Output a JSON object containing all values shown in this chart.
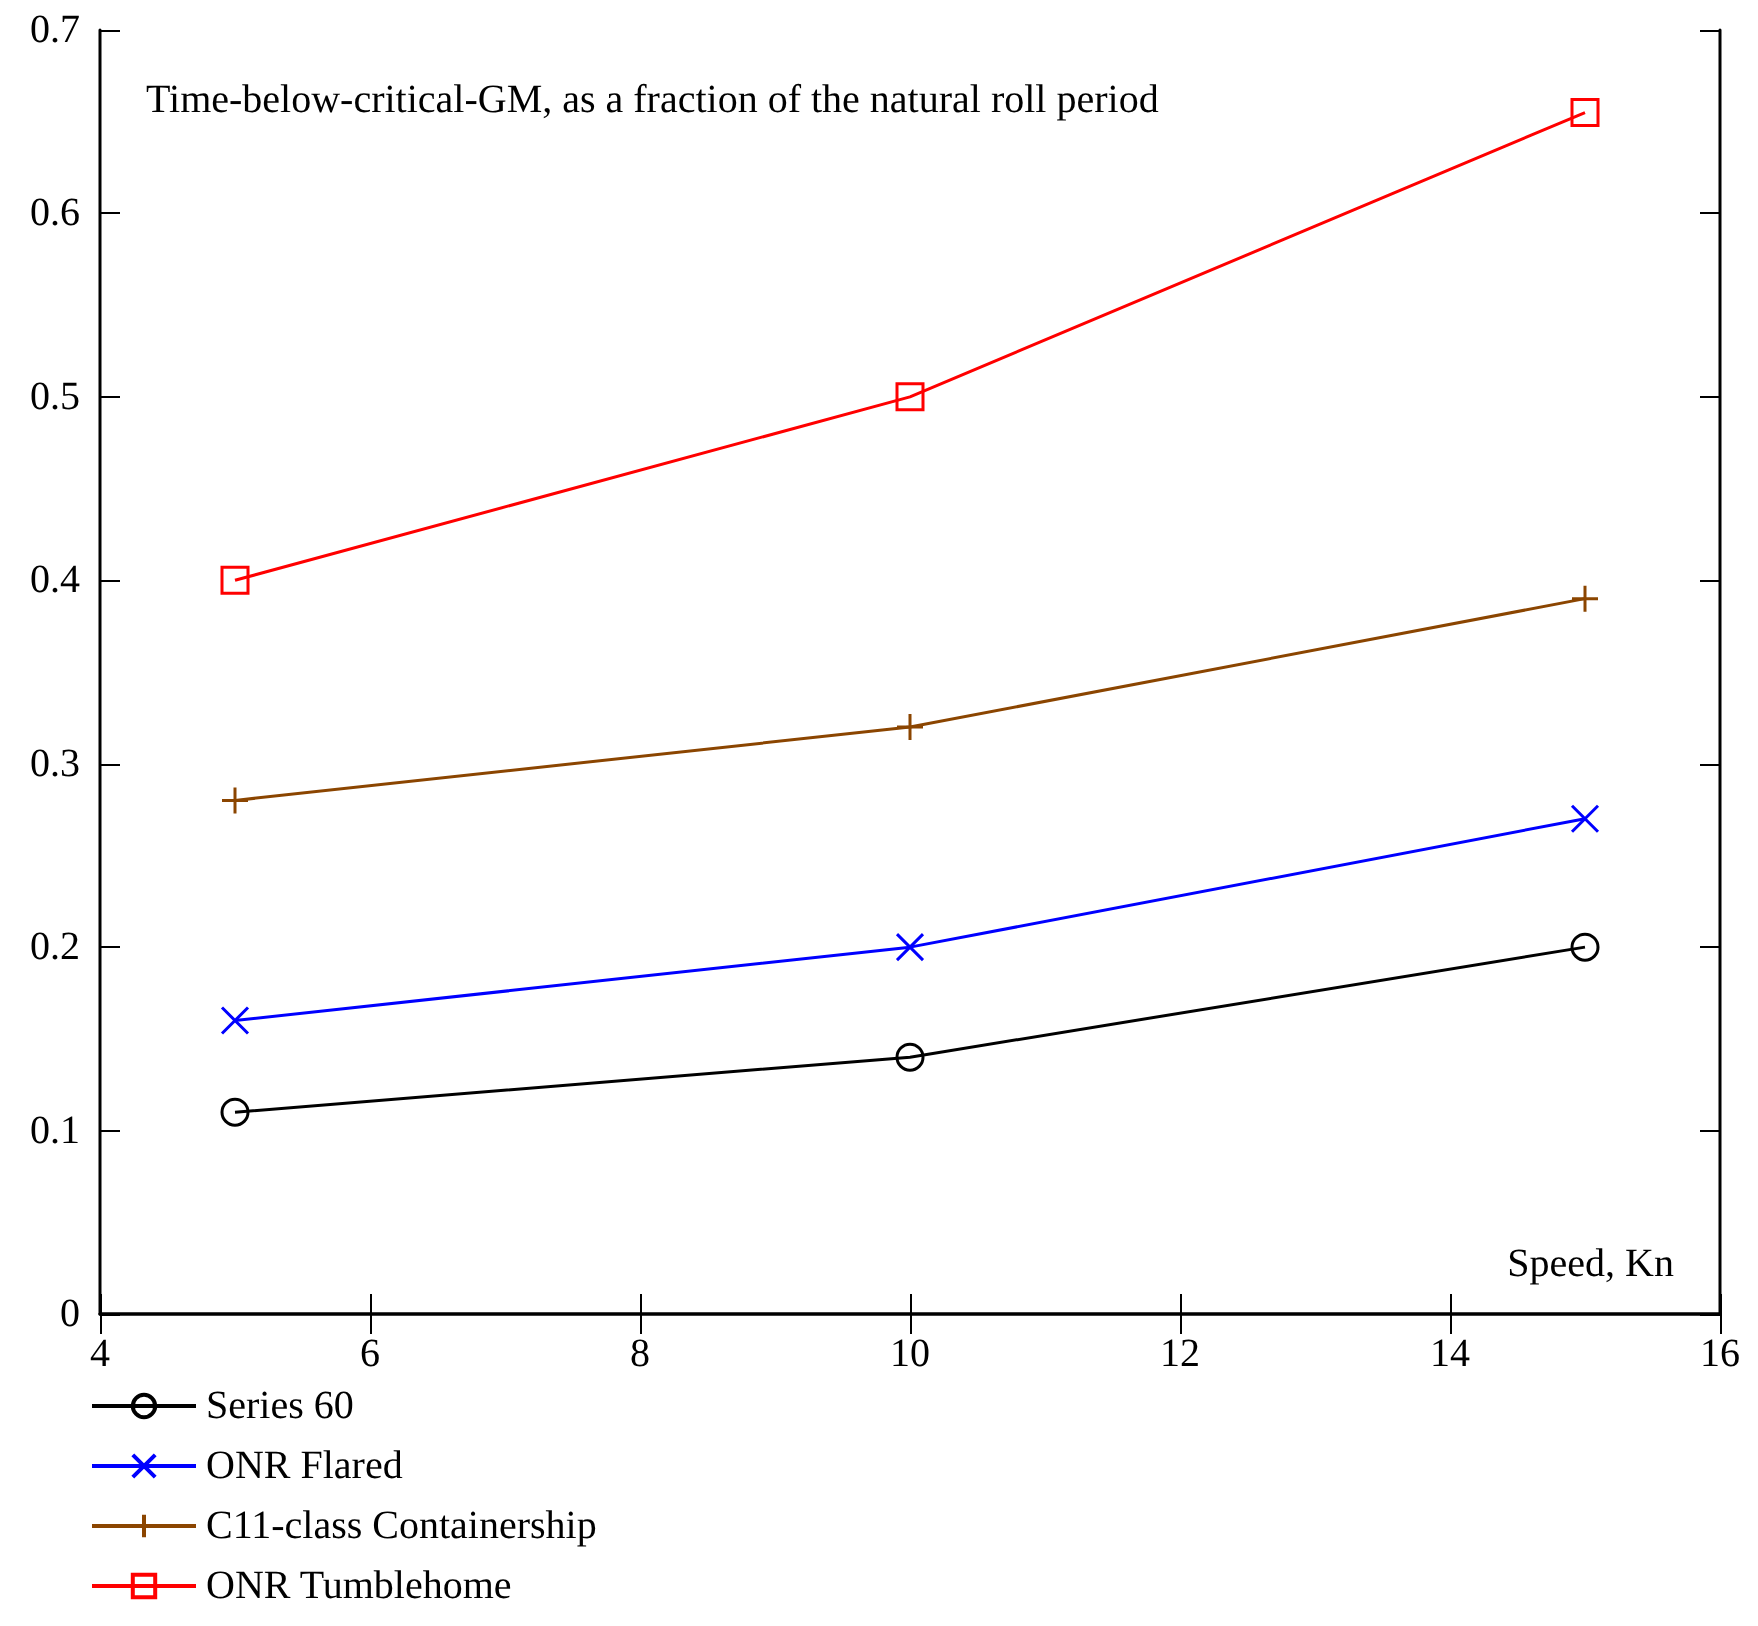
{
  "chart_data": {
    "type": "line",
    "title": "Time-below-critical-GM, as a fraction of the natural roll period",
    "xlabel": "Speed, Kn",
    "x": [
      5,
      10,
      15
    ],
    "series": [
      {
        "name": "Series 60",
        "color": "#000000",
        "marker": "circle",
        "values": [
          0.11,
          0.14,
          0.2
        ]
      },
      {
        "name": "ONR Flared",
        "color": "#0000ff",
        "marker": "cross",
        "values": [
          0.16,
          0.2,
          0.27
        ]
      },
      {
        "name": "C11-class Containership",
        "color": "#8b4500",
        "marker": "plus",
        "values": [
          0.28,
          0.32,
          0.39
        ]
      },
      {
        "name": "ONR Tumblehome",
        "color": "#ff0000",
        "marker": "square",
        "values": [
          0.4,
          0.5,
          0.655
        ]
      }
    ],
    "xlim": [
      4,
      16
    ],
    "xticks": [
      4,
      6,
      8,
      10,
      12,
      14,
      16
    ],
    "ylim": [
      0,
      0.7
    ],
    "yticks": [
      0,
      0.1,
      0.2,
      0.3,
      0.4,
      0.5,
      0.6,
      0.7
    ],
    "grid": false,
    "legend": "bottom left"
  }
}
